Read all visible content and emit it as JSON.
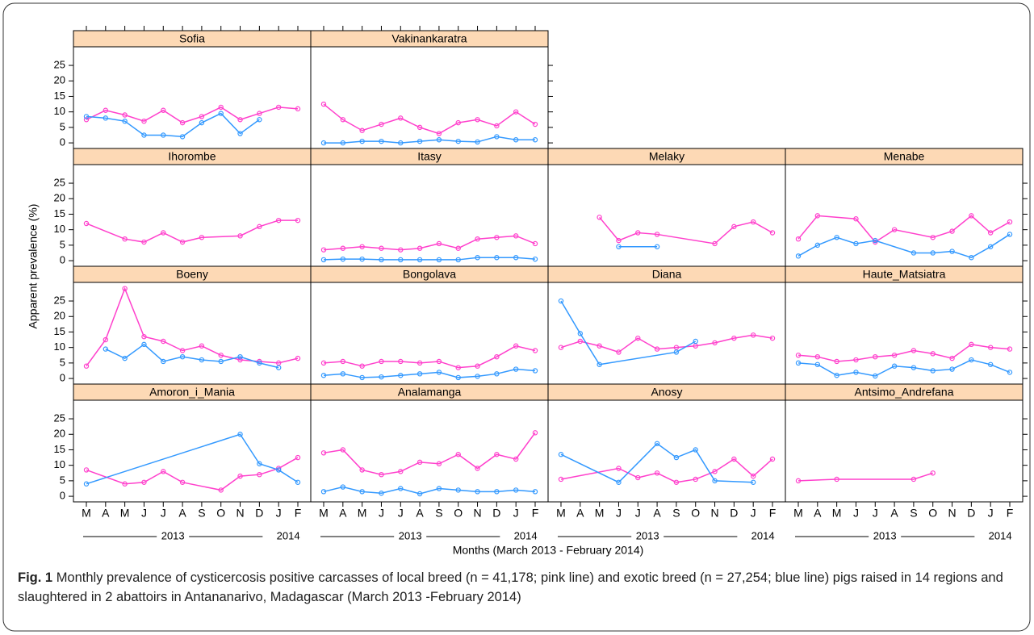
{
  "categories": [
    "M",
    "A",
    "M",
    "J",
    "J",
    "A",
    "S",
    "O",
    "N",
    "D",
    "J",
    "F"
  ],
  "years": [
    "2013",
    "2014"
  ],
  "xlabel": "Months (March 2013 - February 2014)",
  "ylabel": "Apparent prevalence (%)",
  "ylim": [
    -1.8,
    31
  ],
  "yticks": [
    0,
    5,
    10,
    15,
    20,
    25
  ],
  "caption": {
    "label": "Fig. 1",
    "text": "Monthly prevalence of cysticercosis positive carcasses of local breed (n = 41,178; pink line) and exotic breed (n = 27,254; blue line) pigs raised in 14 regions and slaughtered in 2 abattoirs in Antananarivo, Madagascar (March 2013 -February 2014)"
  },
  "chart_data": [
    {
      "type": "line",
      "title": "Sofia",
      "series": [
        {
          "color": "#ff40cc",
          "values": [
            7.5,
            10.5,
            9,
            7,
            10.5,
            6.5,
            8.5,
            11.5,
            7.5,
            9.5,
            11.5,
            11
          ]
        },
        {
          "color": "#3399ff",
          "values": [
            8.5,
            8,
            7,
            2.5,
            2.5,
            2,
            6.5,
            9.5,
            3,
            7.5,
            null,
            null
          ]
        }
      ]
    },
    {
      "type": "line",
      "title": "Vakinankaratra",
      "series": [
        {
          "color": "#ff40cc",
          "values": [
            12.5,
            7.5,
            4,
            6,
            8,
            5,
            3,
            6.5,
            7.5,
            5.5,
            10,
            6
          ]
        },
        {
          "color": "#3399ff",
          "values": [
            0,
            0,
            0.5,
            0.5,
            0,
            0.5,
            1,
            0.5,
            0.3,
            2,
            1,
            1
          ]
        }
      ]
    },
    {
      "type": "line",
      "title": "Ihorombe",
      "series": [
        {
          "color": "#ff40cc",
          "values": [
            12,
            null,
            7,
            6,
            9,
            6,
            7.5,
            null,
            8,
            11,
            13,
            13
          ]
        }
      ]
    },
    {
      "type": "line",
      "title": "Itasy",
      "series": [
        {
          "color": "#ff40cc",
          "values": [
            3.5,
            4,
            4.5,
            4,
            3.5,
            4,
            5.5,
            4,
            7,
            7.5,
            8,
            5.5
          ]
        },
        {
          "color": "#3399ff",
          "values": [
            0.3,
            0.5,
            0.5,
            0.3,
            0.3,
            0.3,
            0.3,
            0.3,
            1,
            1,
            1,
            0.5
          ]
        }
      ]
    },
    {
      "type": "line",
      "title": "Melaky",
      "series": [
        {
          "color": "#ff40cc",
          "values": [
            null,
            null,
            14,
            6.5,
            9,
            8.5,
            null,
            null,
            5.5,
            11,
            12.5,
            9
          ]
        },
        {
          "color": "#3399ff",
          "values": [
            null,
            null,
            null,
            4.5,
            null,
            4.5,
            null,
            null,
            null,
            null,
            null,
            null
          ]
        }
      ]
    },
    {
      "type": "line",
      "title": "Menabe",
      "series": [
        {
          "color": "#ff40cc",
          "values": [
            7,
            14.5,
            null,
            13.5,
            6,
            10,
            null,
            7.5,
            9.5,
            14.5,
            9,
            12.5
          ]
        },
        {
          "color": "#3399ff",
          "values": [
            1.5,
            5,
            7.5,
            5.5,
            6.5,
            null,
            2.5,
            2.5,
            3,
            1,
            4.5,
            8.5
          ]
        }
      ]
    },
    {
      "type": "line",
      "title": "Boeny",
      "series": [
        {
          "color": "#ff40cc",
          "values": [
            4,
            12.5,
            29,
            13.5,
            12,
            9,
            10.5,
            7.5,
            6,
            5.5,
            5,
            6.5
          ]
        },
        {
          "color": "#3399ff",
          "values": [
            null,
            9.5,
            6.5,
            11,
            5.5,
            7,
            6,
            5.5,
            7,
            5,
            3.5,
            null
          ]
        }
      ]
    },
    {
      "type": "line",
      "title": "Bongolava",
      "series": [
        {
          "color": "#ff40cc",
          "values": [
            5,
            5.5,
            4,
            5.5,
            5.5,
            5,
            5.5,
            3.5,
            4,
            7,
            10.5,
            9
          ]
        },
        {
          "color": "#3399ff",
          "values": [
            1,
            1.5,
            0.3,
            0.5,
            1,
            1.5,
            2,
            0.3,
            0.7,
            1.5,
            3,
            2.5
          ]
        }
      ]
    },
    {
      "type": "line",
      "title": "Diana",
      "series": [
        {
          "color": "#ff40cc",
          "values": [
            10,
            12,
            10.5,
            8.5,
            13,
            9.5,
            10,
            10.5,
            11.5,
            13,
            14,
            13
          ]
        },
        {
          "color": "#3399ff",
          "values": [
            25,
            14.5,
            4.5,
            null,
            null,
            null,
            8.5,
            12,
            null,
            null,
            null,
            null
          ]
        }
      ]
    },
    {
      "type": "line",
      "title": "Haute_Matsiatra",
      "series": [
        {
          "color": "#ff40cc",
          "values": [
            7.5,
            7,
            5.5,
            6,
            7,
            7.5,
            9,
            8,
            6.5,
            11,
            10,
            9.5
          ]
        },
        {
          "color": "#3399ff",
          "values": [
            5,
            4.5,
            1,
            2,
            0.8,
            4,
            3.5,
            2.5,
            3,
            6,
            4.5,
            2
          ]
        }
      ]
    },
    {
      "type": "line",
      "title": "Amoron_i_Mania",
      "series": [
        {
          "color": "#ff40cc",
          "values": [
            8.5,
            null,
            4,
            4.5,
            8,
            4.5,
            null,
            2,
            6.5,
            7,
            9,
            12.5
          ]
        },
        {
          "color": "#3399ff",
          "values": [
            4,
            null,
            null,
            null,
            null,
            null,
            null,
            null,
            20,
            10.5,
            8.5,
            4.5
          ]
        }
      ]
    },
    {
      "type": "line",
      "title": "Analamanga",
      "series": [
        {
          "color": "#ff40cc",
          "values": [
            14,
            15,
            8.5,
            7,
            8,
            11,
            10.5,
            13.5,
            9,
            13.5,
            12,
            20.5
          ]
        },
        {
          "color": "#3399ff",
          "values": [
            1.5,
            3,
            1.5,
            1,
            2.5,
            0.8,
            2.5,
            2,
            1.5,
            1.5,
            2,
            1.5
          ]
        }
      ]
    },
    {
      "type": "line",
      "title": "Anosy",
      "series": [
        {
          "color": "#ff40cc",
          "values": [
            5.5,
            null,
            null,
            9,
            6,
            7.5,
            4.5,
            5.5,
            8,
            12,
            6.5,
            12
          ]
        },
        {
          "color": "#3399ff",
          "values": [
            13.5,
            null,
            null,
            4.5,
            null,
            17,
            12.5,
            15,
            5,
            null,
            4.5,
            null
          ]
        }
      ]
    },
    {
      "type": "line",
      "title": "Antsimo_Andrefana",
      "series": [
        {
          "color": "#ff40cc",
          "values": [
            5,
            null,
            5.5,
            null,
            null,
            null,
            5.5,
            7.5,
            null,
            null,
            null,
            null
          ]
        }
      ]
    }
  ]
}
